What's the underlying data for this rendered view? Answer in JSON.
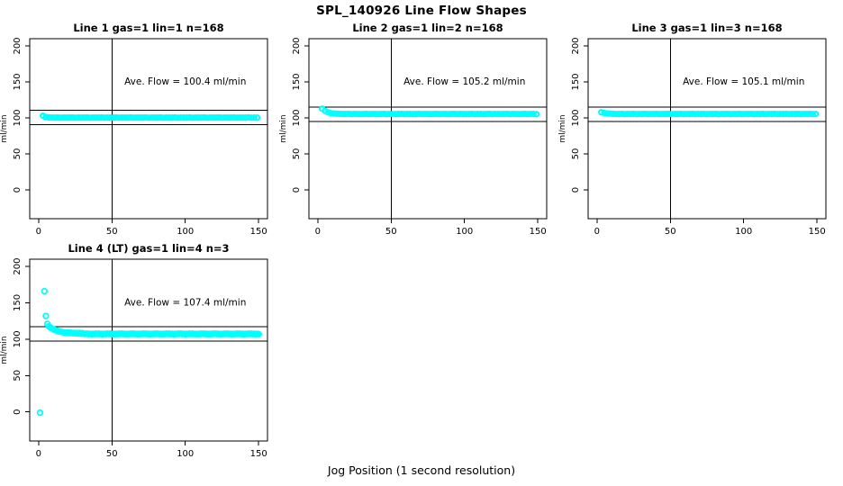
{
  "title": "SPL_140926  Line Flow Shapes",
  "xlabel": "Jog Position (1 second resolution)",
  "colors": {
    "points": "#00FFFF",
    "frame": "#000000",
    "background": "#FFFFFF"
  },
  "chart_data": [
    {
      "type": "scatter",
      "title": "Line 1 gas=1 lin=1 n=168",
      "ylabel": "ml/min",
      "annotation": "Ave. Flow =  100.4  ml/min",
      "annotation_xy": [
        100,
        150
      ],
      "ave_flow": 100.4,
      "ref_hlines": [
        110.4,
        90.4
      ],
      "ref_vline_x": 50,
      "xlim": [
        -6,
        156
      ],
      "ylim": [
        -40,
        210
      ],
      "xticks": [
        0,
        50,
        100,
        150
      ],
      "yticks": [
        0,
        50,
        100,
        150,
        200
      ],
      "series": [
        {
          "name": "flow",
          "x_start": 3,
          "x_step": 2,
          "y": [
            103,
            101.1,
            100.7,
            100.5,
            100.4,
            100.6,
            100.3,
            100.5,
            100.4,
            100.4,
            100.6,
            100.3,
            100.5,
            100.4,
            100.4,
            100.6,
            100.3,
            100.5,
            100.4,
            100.4,
            100.6,
            100.3,
            100.5,
            100.4,
            100.4,
            100.6,
            100.3,
            100.5,
            100.4,
            100.4,
            100.6,
            100.3,
            100.5,
            100.4,
            100.4,
            100.6,
            100.3,
            100.5,
            100.4,
            100.4,
            100.6,
            100.3,
            100.5,
            100.4,
            100.4,
            100.6,
            100.3,
            100.5,
            100.4,
            100.4,
            100.6,
            100.3,
            100.5,
            100.4,
            100.4,
            100.6,
            100.3,
            100.5,
            100.4,
            100.4,
            100.6,
            100.3,
            100.5,
            100.4,
            100.4,
            100.6,
            100.3,
            100.5,
            100.4,
            100.4,
            100.6,
            100.3,
            100.5,
            100.4
          ]
        }
      ],
      "outliers": []
    },
    {
      "type": "scatter",
      "title": "Line 2 gas=1 lin=2 n=168",
      "ylabel": "ml/min",
      "annotation": "Ave. Flow =  105.2  ml/min",
      "annotation_xy": [
        100,
        150
      ],
      "ave_flow": 105.2,
      "ref_hlines": [
        115.2,
        95.2
      ],
      "ref_vline_x": 50,
      "xlim": [
        -6,
        156
      ],
      "ylim": [
        -40,
        210
      ],
      "xticks": [
        0,
        50,
        100,
        150
      ],
      "yticks": [
        0,
        50,
        100,
        150,
        200
      ],
      "series": [
        {
          "name": "flow",
          "x_start": 3,
          "x_step": 2,
          "y": [
            112.8,
            109.8,
            107.8,
            106.6,
            106.1,
            105.8,
            105.6,
            105.5,
            105.4,
            105.6,
            105.3,
            105.5,
            105.4,
            105.3,
            105.4,
            105.6,
            105.3,
            105.5,
            105.4,
            105.3,
            105.4,
            105.6,
            105.3,
            105.5,
            105.4,
            105.3,
            105.4,
            105.6,
            105.3,
            105.5,
            105.4,
            105.3,
            105.4,
            105.6,
            105.3,
            105.5,
            105.4,
            105.3,
            105.4,
            105.6,
            105.3,
            105.5,
            105.4,
            105.3,
            105.4,
            105.6,
            105.3,
            105.5,
            105.4,
            105.3,
            105.4,
            105.6,
            105.3,
            105.5,
            105.4,
            105.3,
            105.4,
            105.6,
            105.3,
            105.5,
            105.4,
            105.3,
            105.4,
            105.6,
            105.3,
            105.5,
            105.4,
            105.3,
            105.4,
            105.6,
            105.3,
            105.5,
            105.4,
            105.3
          ]
        }
      ],
      "outliers": []
    },
    {
      "type": "scatter",
      "title": "Line 3 gas=1 lin=3 n=168",
      "ylabel": "ml/min",
      "annotation": "Ave. Flow =  105.1  ml/min",
      "annotation_xy": [
        100,
        150
      ],
      "ave_flow": 105.1,
      "ref_hlines": [
        115.1,
        95.1
      ],
      "ref_vline_x": 50,
      "xlim": [
        -6,
        156
      ],
      "ylim": [
        -40,
        210
      ],
      "xticks": [
        0,
        50,
        100,
        150
      ],
      "yticks": [
        0,
        50,
        100,
        150,
        200
      ],
      "series": [
        {
          "name": "flow",
          "x_start": 3,
          "x_step": 2,
          "y": [
            107.8,
            106.8,
            106.2,
            105.9,
            105.6,
            105.5,
            105.4,
            105.6,
            105.3,
            105.5,
            105.4,
            105.6,
            105.3,
            105.5,
            105.4,
            105.6,
            105.3,
            105.5,
            105.4,
            105.6,
            105.3,
            105.5,
            105.4,
            105.6,
            105.3,
            105.5,
            105.4,
            105.6,
            105.3,
            105.5,
            105.4,
            105.6,
            105.3,
            105.5,
            105.4,
            105.6,
            105.3,
            105.5,
            105.4,
            105.6,
            105.3,
            105.5,
            105.4,
            105.6,
            105.3,
            105.5,
            105.4,
            105.6,
            105.3,
            105.5,
            105.4,
            105.6,
            105.3,
            105.5,
            105.4,
            105.6,
            105.3,
            105.5,
            105.4,
            105.6,
            105.3,
            105.5,
            105.4,
            105.6,
            105.3,
            105.5,
            105.4,
            105.6,
            105.3,
            105.5,
            105.4,
            105.6,
            105.3,
            105.5
          ]
        }
      ],
      "outliers": []
    },
    {
      "type": "scatter",
      "title": "Line 4 (LT) gas=1 lin=4 n=3",
      "ylabel": "ml/min",
      "annotation": "Ave. Flow =  107.4  ml/min",
      "annotation_xy": [
        100,
        150
      ],
      "ave_flow": 107.4,
      "ref_hlines": [
        117.4,
        97.4
      ],
      "ref_vline_x": 50,
      "xlim": [
        -6,
        156
      ],
      "ylim": [
        -40,
        210
      ],
      "xticks": [
        0,
        50,
        100,
        150
      ],
      "yticks": [
        0,
        50,
        100,
        150,
        200
      ],
      "series": [
        {
          "name": "flow",
          "x_start": 7,
          "x_step": 1,
          "y": [
            117.6,
            116.2,
            114.9,
            113.8,
            112.9,
            112.1,
            111.4,
            110.8,
            110.3,
            109.8,
            109.5,
            109.1,
            108.8,
            109.2,
            108.5,
            108.9,
            108.3,
            108.6,
            108.1,
            108.5,
            107.9,
            108.4,
            107.8,
            108.2,
            107.7,
            107.2,
            107.6,
            107.0,
            107.4,
            106.8,
            107.3,
            107.0,
            107.7,
            107.2,
            107.6,
            107.0,
            107.4,
            106.8,
            107.3,
            107.0,
            107.7,
            107.2,
            107.6,
            107.0,
            107.4,
            106.8,
            107.3,
            107.0,
            107.7,
            107.2,
            107.6,
            107.0,
            107.4,
            106.8,
            107.3,
            107.0,
            107.7,
            107.2,
            107.6,
            107.0,
            107.4,
            106.8,
            107.3,
            107.0,
            107.7,
            107.2,
            107.6,
            107.0,
            107.4,
            106.8,
            107.3,
            107.0,
            107.7,
            107.2,
            107.6,
            107.0,
            107.4,
            106.8,
            107.3,
            107.0,
            107.7,
            107.2,
            107.6,
            107.0,
            107.4,
            106.8,
            107.3,
            107.0,
            107.7,
            107.2,
            107.6,
            107.0,
            107.4,
            106.8,
            107.3,
            107.0,
            107.7,
            107.2,
            107.6,
            107.0,
            107.4,
            106.8,
            107.3,
            107.0,
            107.7,
            107.2,
            107.6,
            107.0,
            107.4,
            106.8,
            107.3,
            107.0,
            107.7,
            107.2,
            107.6,
            107.0,
            107.4,
            106.8,
            107.3,
            107.0,
            107.7,
            107.2,
            107.6,
            107.0,
            107.4,
            106.8,
            107.3,
            107.0,
            107.7,
            107.2,
            107.6,
            107.0,
            107.4,
            106.8,
            107.3,
            107.0,
            107.7,
            107.2,
            107.6,
            107.0,
            107.4,
            106.8,
            107.3,
            107.0
          ]
        }
      ],
      "outliers": [
        [
          1,
          -1
        ],
        [
          4,
          166
        ],
        [
          5,
          132
        ],
        [
          6,
          121
        ]
      ]
    }
  ]
}
